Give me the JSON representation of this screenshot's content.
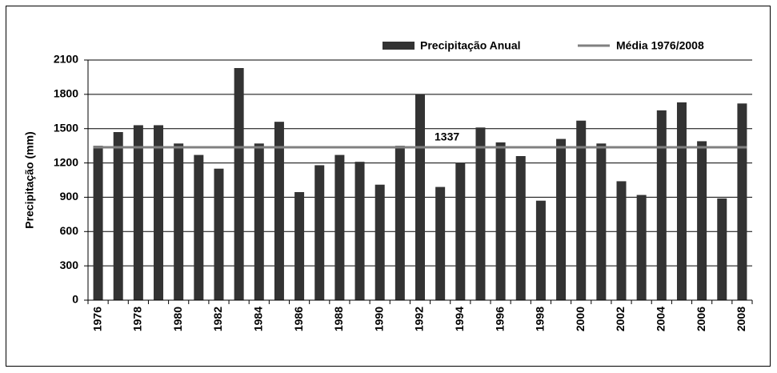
{
  "chart_data": {
    "type": "bar",
    "y_label": "Precipitação (mm)",
    "categories": [
      "1976",
      null,
      "1978",
      null,
      "1980",
      null,
      "1982",
      null,
      "1984",
      null,
      "1986",
      null,
      "1988",
      null,
      "1990",
      null,
      "1992",
      null,
      "1994",
      null,
      "1996",
      null,
      "1998",
      null,
      "2000",
      null,
      "2002",
      null,
      "2004",
      null,
      "2006",
      null,
      "2008"
    ],
    "series": [
      {
        "name": "Precipitação Anual",
        "color": "#333333",
        "values": [
          1350,
          1470,
          1530,
          1530,
          1370,
          1270,
          1150,
          2030,
          1370,
          1560,
          945,
          1180,
          1270,
          1210,
          1010,
          1350,
          1800,
          990,
          1200,
          1510,
          1380,
          1260,
          870,
          1410,
          1570,
          1370,
          1040,
          920,
          1660,
          1730,
          1390,
          890,
          1720
        ]
      }
    ],
    "mean": {
      "name": "Média 1976/2008",
      "value": 1337,
      "color": "#808080"
    },
    "ylim": [
      0,
      2100
    ],
    "yticks": [
      0,
      300,
      600,
      900,
      1200,
      1500,
      1800,
      2100
    ],
    "grid": true
  }
}
